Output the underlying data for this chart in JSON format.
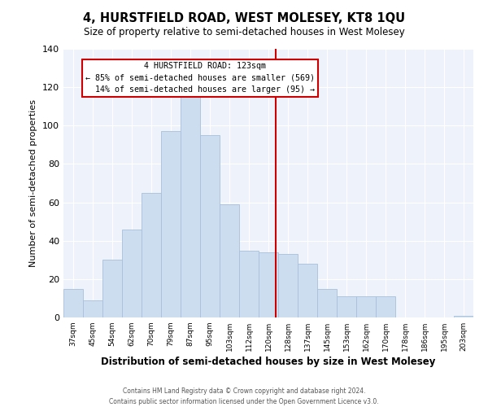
{
  "title": "4, HURSTFIELD ROAD, WEST MOLESEY, KT8 1QU",
  "subtitle": "Size of property relative to semi-detached houses in West Molesey",
  "xlabel": "Distribution of semi-detached houses by size in West Molesey",
  "ylabel": "Number of semi-detached properties",
  "bin_labels": [
    "37sqm",
    "45sqm",
    "54sqm",
    "62sqm",
    "70sqm",
    "79sqm",
    "87sqm",
    "95sqm",
    "103sqm",
    "112sqm",
    "120sqm",
    "128sqm",
    "137sqm",
    "145sqm",
    "153sqm",
    "162sqm",
    "170sqm",
    "178sqm",
    "186sqm",
    "195sqm",
    "203sqm"
  ],
  "bar_heights": [
    15,
    9,
    30,
    46,
    65,
    97,
    115,
    95,
    59,
    35,
    34,
    33,
    28,
    15,
    11,
    11,
    11,
    0,
    0,
    0,
    1
  ],
  "bar_color": "#ccddf0",
  "bar_edge_color": "#a8c0da",
  "property_label": "4 HURSTFIELD ROAD: 123sqm",
  "pct_smaller": 85,
  "n_smaller": 569,
  "pct_larger": 14,
  "n_larger": 95,
  "vline_color": "#cc0000",
  "vline_x": 10.375,
  "ylim": [
    0,
    140
  ],
  "yticks": [
    0,
    20,
    40,
    60,
    80,
    100,
    120,
    140
  ],
  "annotation_box_color": "#ffffff",
  "annotation_box_edge": "#cc0000",
  "bg_color": "#eef2fa",
  "grid_color": "#ffffff",
  "footer_line1": "Contains HM Land Registry data © Crown copyright and database right 2024.",
  "footer_line2": "Contains public sector information licensed under the Open Government Licence v3.0."
}
